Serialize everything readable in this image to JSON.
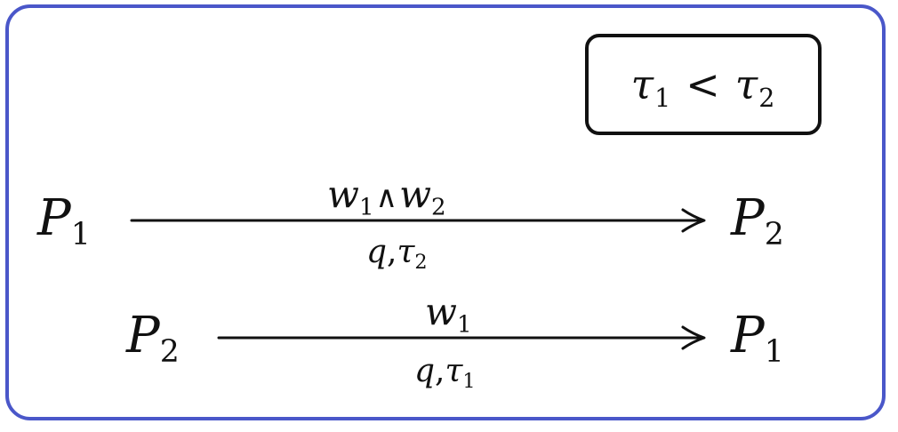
{
  "condition": {
    "lhs": "τ",
    "lhs_sub": "1",
    "op": "<",
    "rhs": "τ",
    "rhs_sub": "2"
  },
  "edges": [
    {
      "from": {
        "symbol": "P",
        "sub": "1"
      },
      "to": {
        "symbol": "P",
        "sub": "2"
      },
      "top_label": {
        "a": "w",
        "a_sub": "1",
        "op": "∧",
        "b": "w",
        "b_sub": "2"
      },
      "bottom_label": {
        "q": "q",
        "sep": ",",
        "t": "τ",
        "t_sub": "2"
      }
    },
    {
      "from": {
        "symbol": "P",
        "sub": "2"
      },
      "to": {
        "symbol": "P",
        "sub": "1"
      },
      "top_label": {
        "a": "w",
        "a_sub": "1"
      },
      "bottom_label": {
        "q": "q",
        "sep": ",",
        "t": "τ",
        "t_sub": "1"
      }
    }
  ],
  "colors": {
    "frame": "#4a57c9",
    "ink": "#111111"
  }
}
